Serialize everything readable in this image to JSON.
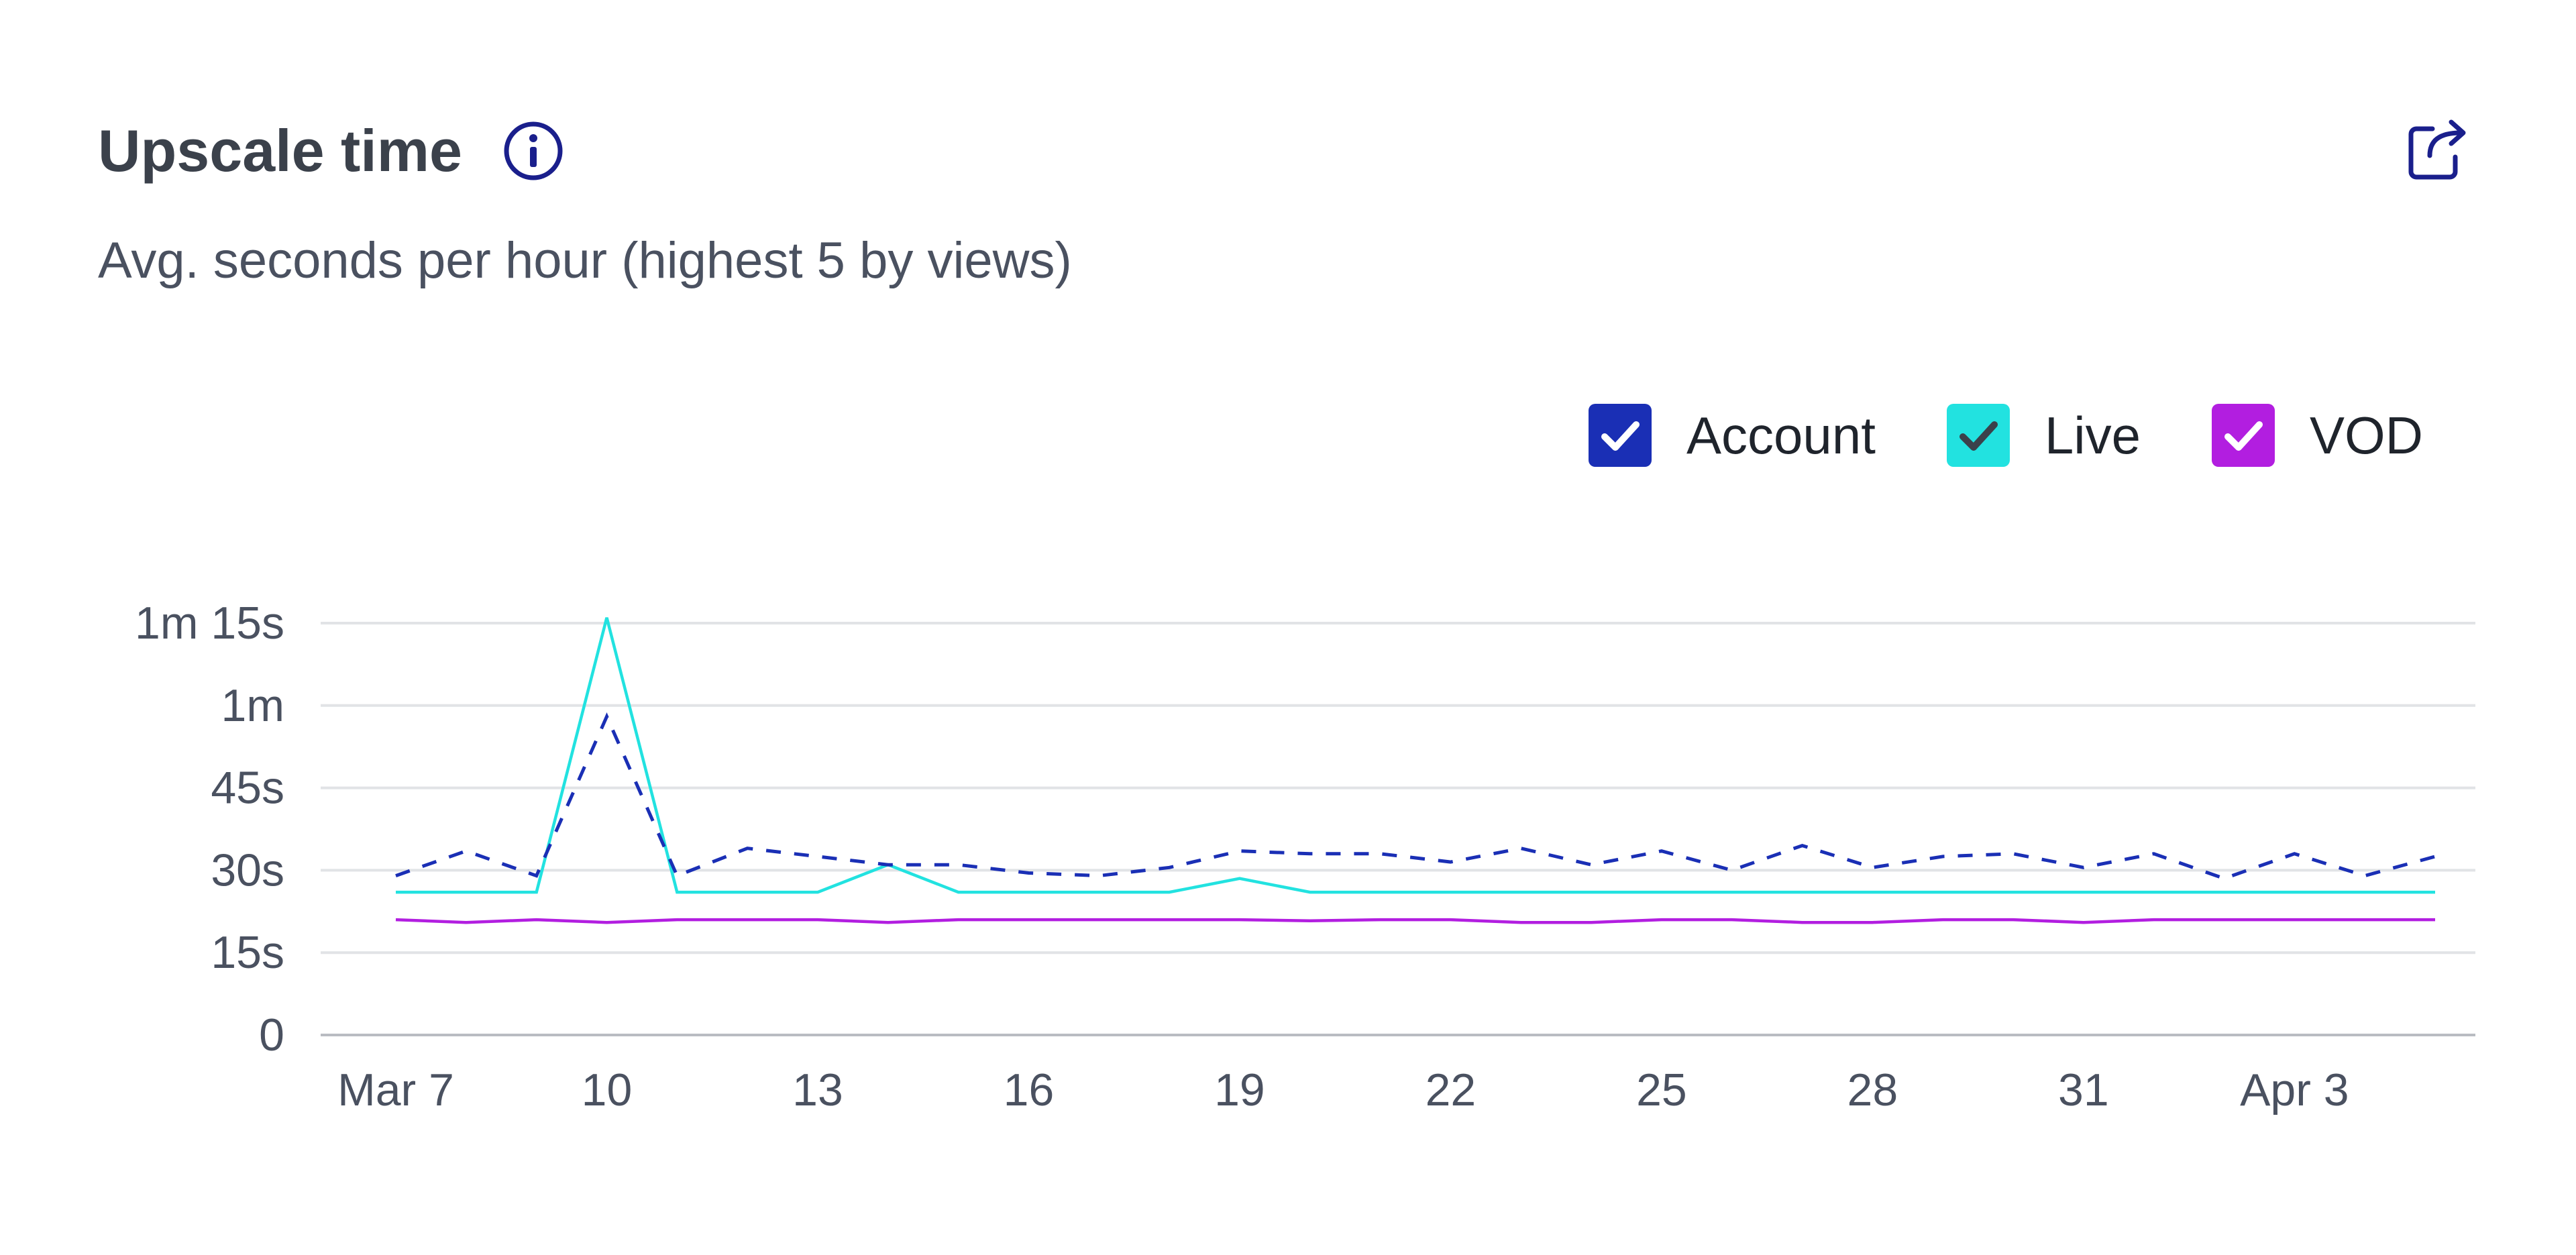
{
  "header": {
    "title": "Upscale time",
    "subtitle": "Avg. seconds per hour (highest 5 by views)"
  },
  "icons": {
    "info": "info-icon",
    "export": "export-icon"
  },
  "colors": {
    "account": "#1a2fb5",
    "live": "#22e2e0",
    "vod": "#b21ee0",
    "grid": "#e1e3e6",
    "axis": "#b9bcc2"
  },
  "legend": [
    {
      "label": "Account",
      "color": "#1a2fb5",
      "checked": true,
      "check_color": "#ffffff"
    },
    {
      "label": "Live",
      "color": "#22e2e0",
      "checked": true,
      "check_color": "#3b414b"
    },
    {
      "label": "VOD",
      "color": "#b21ee0",
      "checked": true,
      "check_color": "#ffffff"
    }
  ],
  "chart_data": {
    "type": "line",
    "title": "Upscale time",
    "subtitle": "Avg. seconds per hour (highest 5 by views)",
    "x": [
      "Mar 7",
      "Mar 8",
      "Mar 9",
      "Mar 10",
      "Mar 11",
      "Mar 12",
      "Mar 13",
      "Mar 14",
      "Mar 15",
      "Mar 16",
      "Mar 17",
      "Mar 18",
      "Mar 19",
      "Mar 20",
      "Mar 21",
      "Mar 22",
      "Mar 23",
      "Mar 24",
      "Mar 25",
      "Mar 26",
      "Mar 27",
      "Mar 28",
      "Mar 29",
      "Mar 30",
      "Mar 31",
      "Apr 1",
      "Apr 2",
      "Apr 3",
      "Apr 4",
      "Apr 5"
    ],
    "x_tick_labels": [
      {
        "index": 0,
        "label": "Mar 7"
      },
      {
        "index": 3,
        "label": "10"
      },
      {
        "index": 6,
        "label": "13"
      },
      {
        "index": 9,
        "label": "16"
      },
      {
        "index": 12,
        "label": "19"
      },
      {
        "index": 15,
        "label": "22"
      },
      {
        "index": 18,
        "label": "25"
      },
      {
        "index": 21,
        "label": "28"
      },
      {
        "index": 24,
        "label": "31"
      },
      {
        "index": 27,
        "label": "Apr 3"
      }
    ],
    "y_ticks": [
      {
        "value": 0,
        "label": "0"
      },
      {
        "value": 15,
        "label": "15s"
      },
      {
        "value": 30,
        "label": "30s"
      },
      {
        "value": 45,
        "label": "45s"
      },
      {
        "value": 60,
        "label": "1m"
      },
      {
        "value": 75,
        "label": "1m 15s"
      }
    ],
    "ylim": [
      0,
      75
    ],
    "grid": true,
    "legend_position": "top-right",
    "series": [
      {
        "name": "Account",
        "style": "dashed",
        "values": [
          29,
          33.5,
          29,
          58,
          29,
          34,
          32.5,
          31,
          31,
          29.5,
          29,
          30.5,
          33.5,
          33,
          33,
          31.5,
          34,
          31,
          33.5,
          30,
          34.5,
          30.5,
          32.5,
          33,
          30.5,
          33,
          28.5,
          33,
          29,
          32.5
        ]
      },
      {
        "name": "Live",
        "style": "solid",
        "values": [
          26,
          26,
          26,
          76,
          26,
          26,
          26,
          31,
          26,
          26,
          26,
          26,
          28.5,
          26,
          26,
          26,
          26,
          26,
          26,
          26,
          26,
          26,
          26,
          26,
          26,
          26,
          26,
          26,
          26,
          26
        ]
      },
      {
        "name": "VOD",
        "style": "solid",
        "values": [
          21,
          20.5,
          21,
          20.5,
          21,
          21,
          21,
          20.5,
          21,
          21,
          21,
          21,
          21,
          20.8,
          21,
          21,
          20.5,
          20.5,
          21,
          21,
          20.5,
          20.5,
          21,
          21,
          20.5,
          21,
          21,
          21,
          21,
          21
        ]
      }
    ]
  }
}
